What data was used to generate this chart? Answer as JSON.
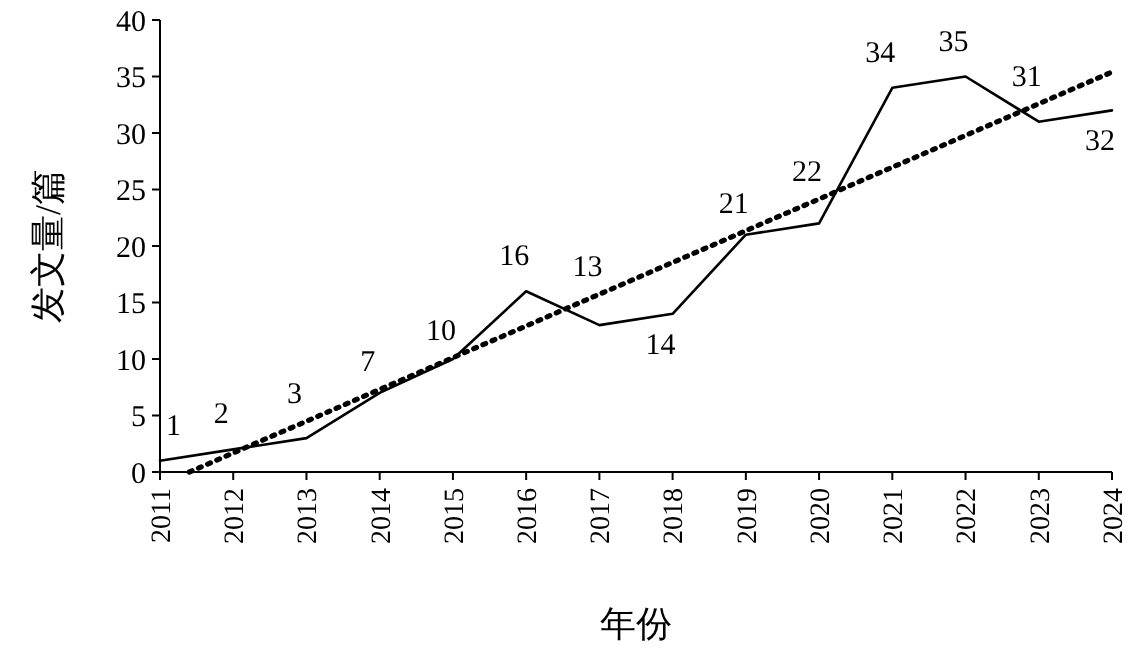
{
  "chart_data": {
    "type": "line",
    "xlabel": "年份",
    "ylabel": "发文量/篇",
    "xlim": [
      2011,
      2024
    ],
    "xticks": [
      2011,
      2012,
      2013,
      2014,
      2015,
      2016,
      2017,
      2018,
      2019,
      2020,
      2021,
      2022,
      2023,
      2024
    ],
    "ylim": [
      0,
      40
    ],
    "yticks": [
      0,
      5,
      10,
      15,
      20,
      25,
      30,
      35,
      40
    ],
    "grid": false,
    "marker": "none",
    "series": [
      {
        "color": "#000000",
        "line_style": "solid",
        "data_labels": true,
        "x": [
          2011,
          2012,
          2013,
          2014,
          2015,
          2016,
          2017,
          2018,
          2019,
          2020,
          2021,
          2022,
          2023,
          2024
        ],
        "values": [
          1,
          2,
          3,
          7,
          10,
          16,
          13,
          14,
          21,
          22,
          34,
          35,
          31,
          32
        ]
      },
      {
        "type": "line",
        "color": "#000000",
        "line_style": "dotted",
        "x": [
          2011.4,
          2024
        ],
        "values": [
          0,
          35.4
        ]
      }
    ]
  }
}
